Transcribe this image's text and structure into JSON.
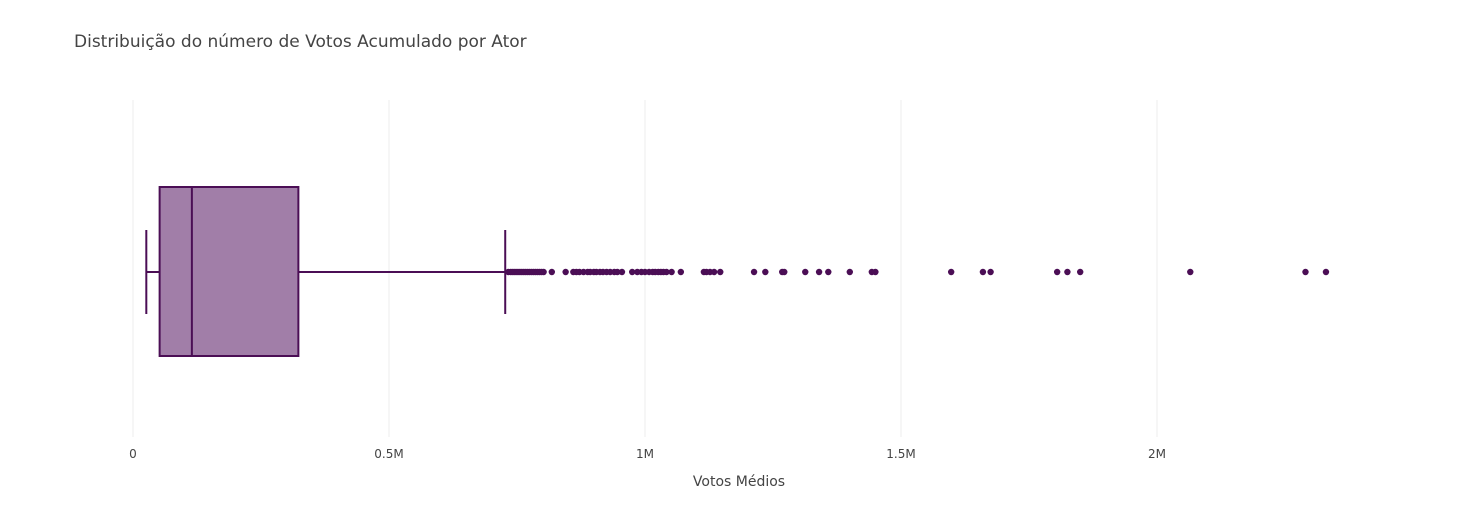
{
  "chart_data": {
    "type": "box",
    "title": "Distribuição do número de Votos Acumulado por Ator",
    "xlabel": "Votos Médios",
    "ylabel": "",
    "xlim": [
      0,
      2400000
    ],
    "x_ticks": [
      0,
      500000,
      1000000,
      1500000,
      2000000
    ],
    "x_tick_labels": [
      "0",
      "0.5M",
      "1M",
      "1.5M",
      "2M"
    ],
    "grid": true,
    "legend": "none",
    "colors": {
      "fill": "#a17ea8",
      "line": "#4b0e55"
    },
    "box": {
      "lower_fence": 26000,
      "q1": 52000,
      "median": 115000,
      "q3": 323000,
      "upper_fence": 727000
    },
    "outliers": [
      733000,
      738000,
      742000,
      746000,
      750000,
      754000,
      758000,
      762000,
      766000,
      770000,
      774000,
      778000,
      782000,
      786000,
      790000,
      794000,
      798000,
      802000,
      818000,
      845000,
      860000,
      866000,
      872000,
      880000,
      888000,
      893000,
      900000,
      905000,
      912000,
      918000,
      925000,
      932000,
      940000,
      946000,
      955000,
      975000,
      985000,
      993000,
      1000000,
      1008000,
      1015000,
      1020000,
      1026000,
      1031000,
      1036000,
      1042000,
      1052000,
      1070000,
      1115000,
      1120000,
      1127000,
      1135000,
      1147000,
      1213000,
      1235000,
      1268000,
      1272000,
      1313000,
      1340000,
      1358000,
      1400000,
      1443000,
      1450000,
      1598000,
      1660000,
      1675000,
      1805000,
      1825000,
      1850000,
      2065000,
      2290000,
      2330000
    ]
  }
}
